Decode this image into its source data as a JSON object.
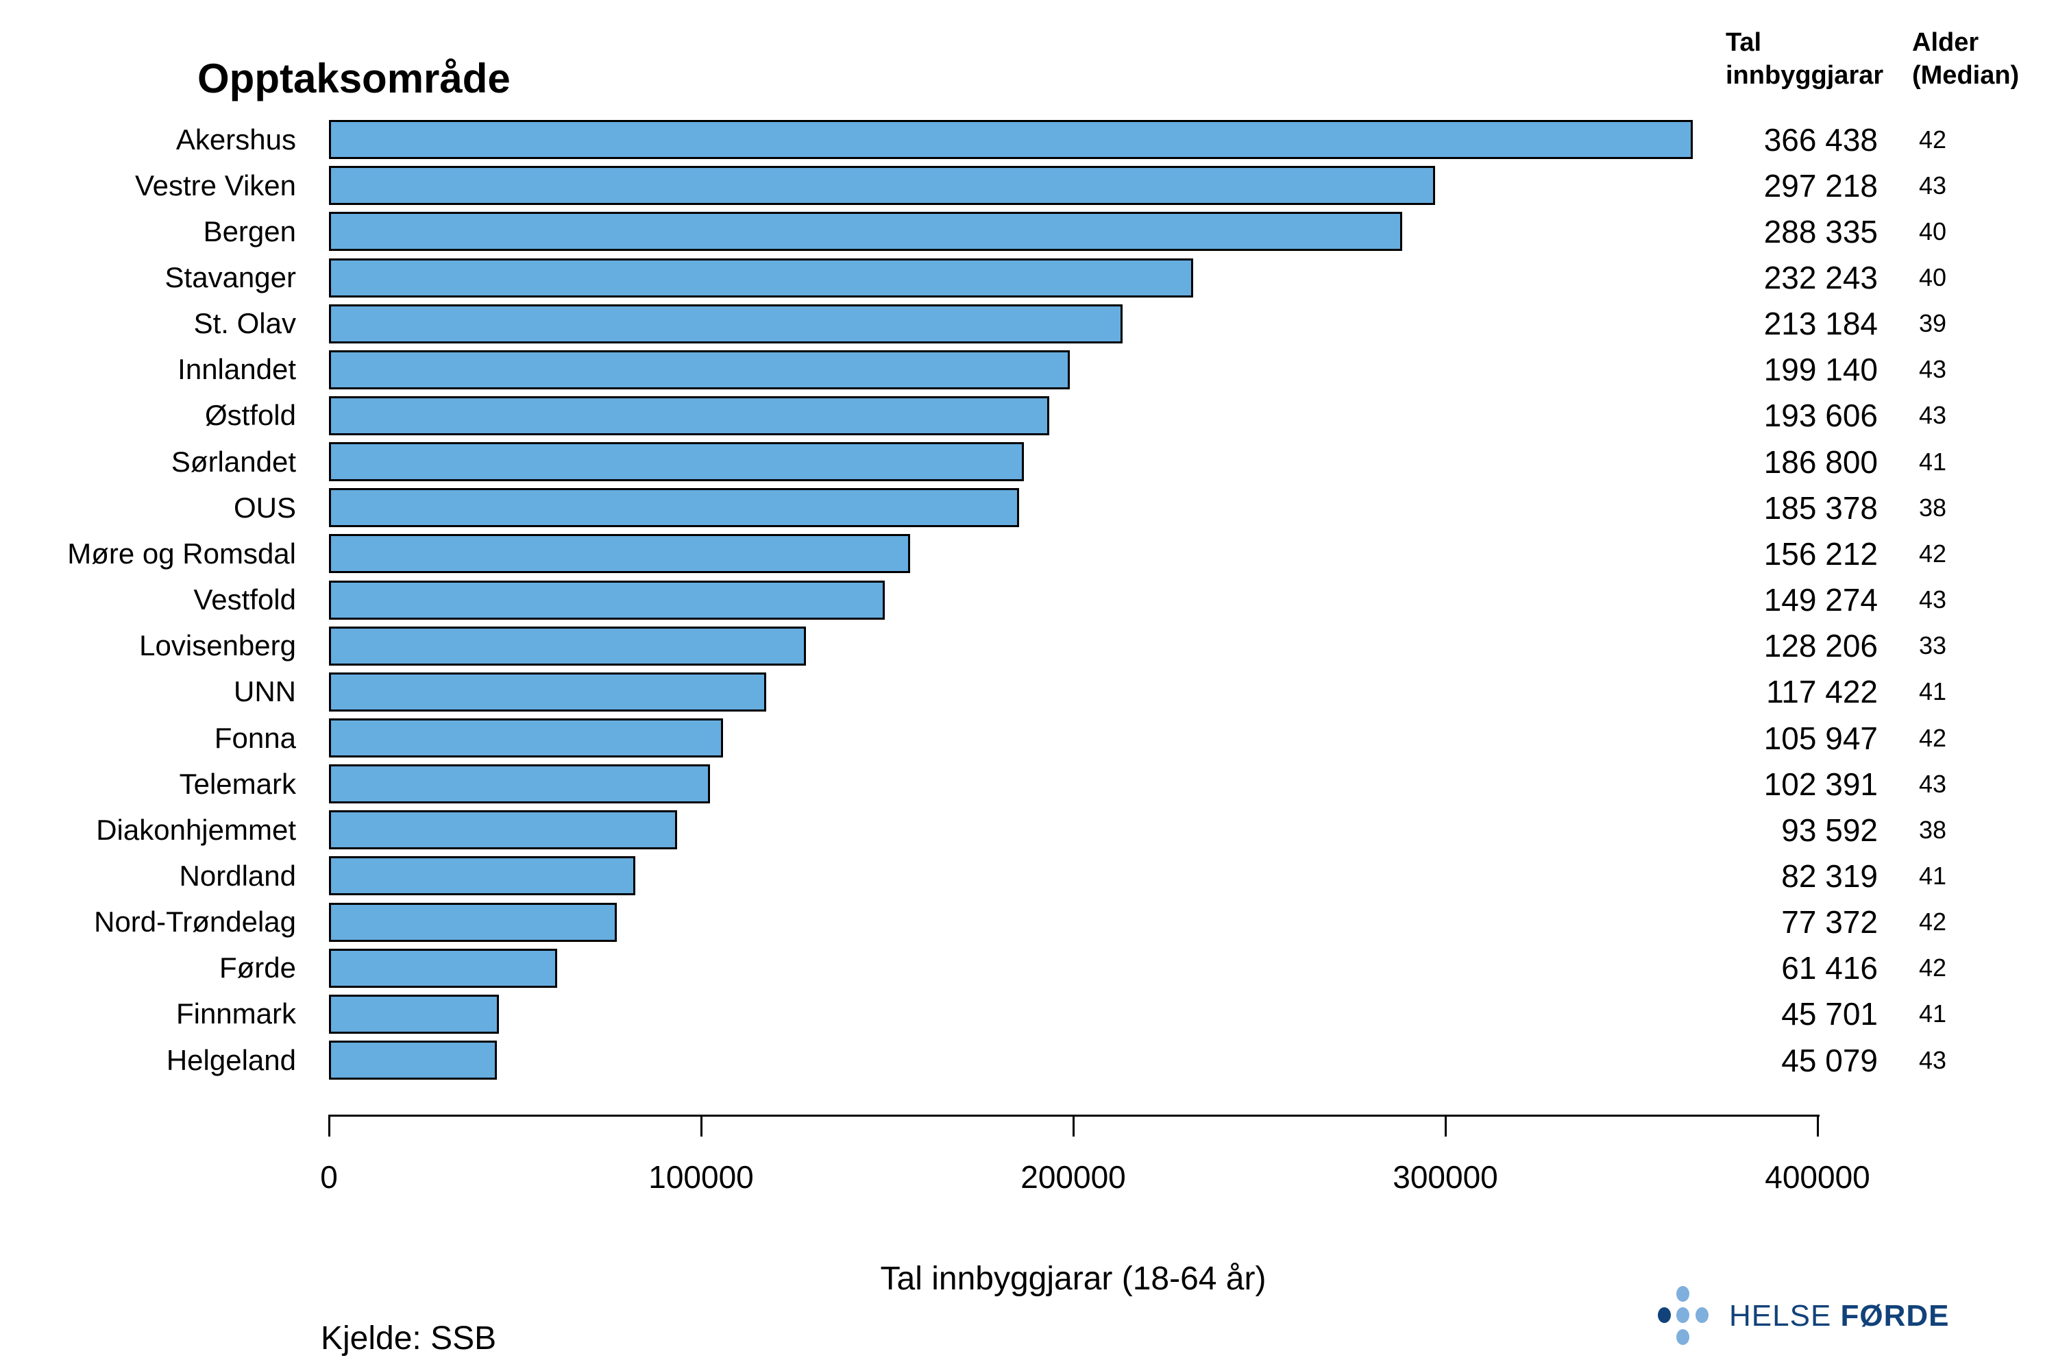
{
  "header": {
    "left_title": "Opptaksområde",
    "population_col_header": "Tal\ninnbyggjarar",
    "age_col_header": "Alder\n(Median)"
  },
  "chart_data": {
    "type": "bar",
    "orientation": "horizontal",
    "categories": [
      "Akershus",
      "Vestre Viken",
      "Bergen",
      "Stavanger",
      "St. Olav",
      "Innlandet",
      "Østfold",
      "Sørlandet",
      "OUS",
      "Møre og Romsdal",
      "Vestfold",
      "Lovisenberg",
      "UNN",
      "Fonna",
      "Telemark",
      "Diakonhjemmet",
      "Nordland",
      "Nord-Trøndelag",
      "Førde",
      "Finnmark",
      "Helgeland"
    ],
    "values": [
      366438,
      297218,
      288335,
      232243,
      213184,
      199140,
      193606,
      186800,
      185378,
      156212,
      149274,
      128206,
      117422,
      105947,
      102391,
      93592,
      82319,
      77372,
      61416,
      45701,
      45079
    ],
    "value_labels": [
      "366 438",
      "297 218",
      "288 335",
      "232 243",
      "213 184",
      "199 140",
      "193 606",
      "186 800",
      "185 378",
      "156 212",
      "149 274",
      "128 206",
      "117 422",
      "105 947",
      "102 391",
      "93 592",
      "82 319",
      "77 372",
      "61 416",
      "45 701",
      "45 079"
    ],
    "series": [
      {
        "name": "Tal innbyggjarar",
        "values": [
          366438,
          297218,
          288335,
          232243,
          213184,
          199140,
          193606,
          186800,
          185378,
          156212,
          149274,
          128206,
          117422,
          105947,
          102391,
          93592,
          82319,
          77372,
          61416,
          45701,
          45079
        ]
      },
      {
        "name": "Alder (Median)",
        "values": [
          42,
          43,
          40,
          40,
          39,
          43,
          43,
          41,
          38,
          42,
          43,
          33,
          41,
          42,
          43,
          38,
          41,
          42,
          42,
          41,
          43
        ]
      }
    ],
    "xlabel": "Tal innbyggjarar (18-64 år)",
    "xlim": [
      0,
      400000
    ],
    "xticks": [
      0,
      100000,
      200000,
      300000,
      400000
    ],
    "xtick_labels": [
      "0",
      "100000",
      "200000",
      "300000",
      "400000"
    ],
    "grid": false,
    "legend": "none",
    "bar_color": "#66ADE0",
    "bar_border_color": "#000000"
  },
  "footer": {
    "source": "Kjelde: SSB"
  },
  "logo": {
    "text_regular": "HELSE",
    "text_bold": "FØRDE",
    "dark_color": "#12427A",
    "light_color": "#7FAFDC"
  }
}
